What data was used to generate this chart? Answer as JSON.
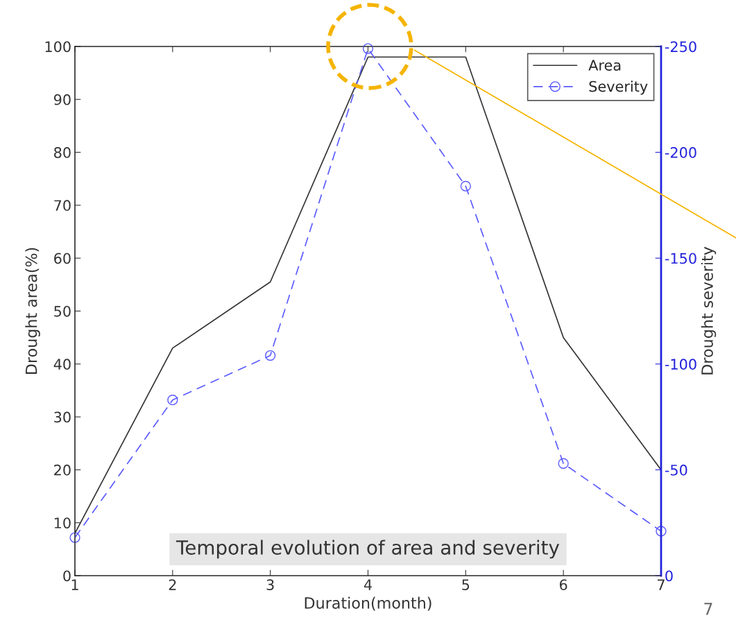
{
  "chart_data": {
    "type": "line",
    "xlabel": "Duration(month)",
    "ylabel": "Drought area(%)",
    "y2label": "Drought severity",
    "x": [
      1,
      2,
      3,
      4,
      5,
      6,
      7
    ],
    "series": [
      {
        "name": "Area",
        "color": "#333333",
        "values": [
          8,
          43,
          55.5,
          98,
          98,
          45,
          20
        ],
        "line_style": "solid",
        "marker": "none"
      },
      {
        "name": "Severity",
        "color": "#5a5aff",
        "values": [
          -18,
          -83,
          -104,
          -249,
          -184,
          -53,
          -21
        ],
        "axis": "y2",
        "line_style": "dashed",
        "marker": "circle"
      }
    ],
    "xlim": [
      1,
      7
    ],
    "xticks": [
      1,
      2,
      3,
      4,
      5,
      6,
      7
    ],
    "ylim": [
      0,
      100
    ],
    "yticks": [
      0,
      10,
      20,
      30,
      40,
      50,
      60,
      70,
      80,
      90,
      100
    ],
    "y2lim": [
      0,
      -250
    ],
    "y2ticks": [
      0,
      -50,
      -100,
      -150,
      -200,
      -250
    ],
    "legend": "top right",
    "grid": false,
    "annotations": [
      "Temporal evolution of area and severity",
      "7"
    ]
  }
}
